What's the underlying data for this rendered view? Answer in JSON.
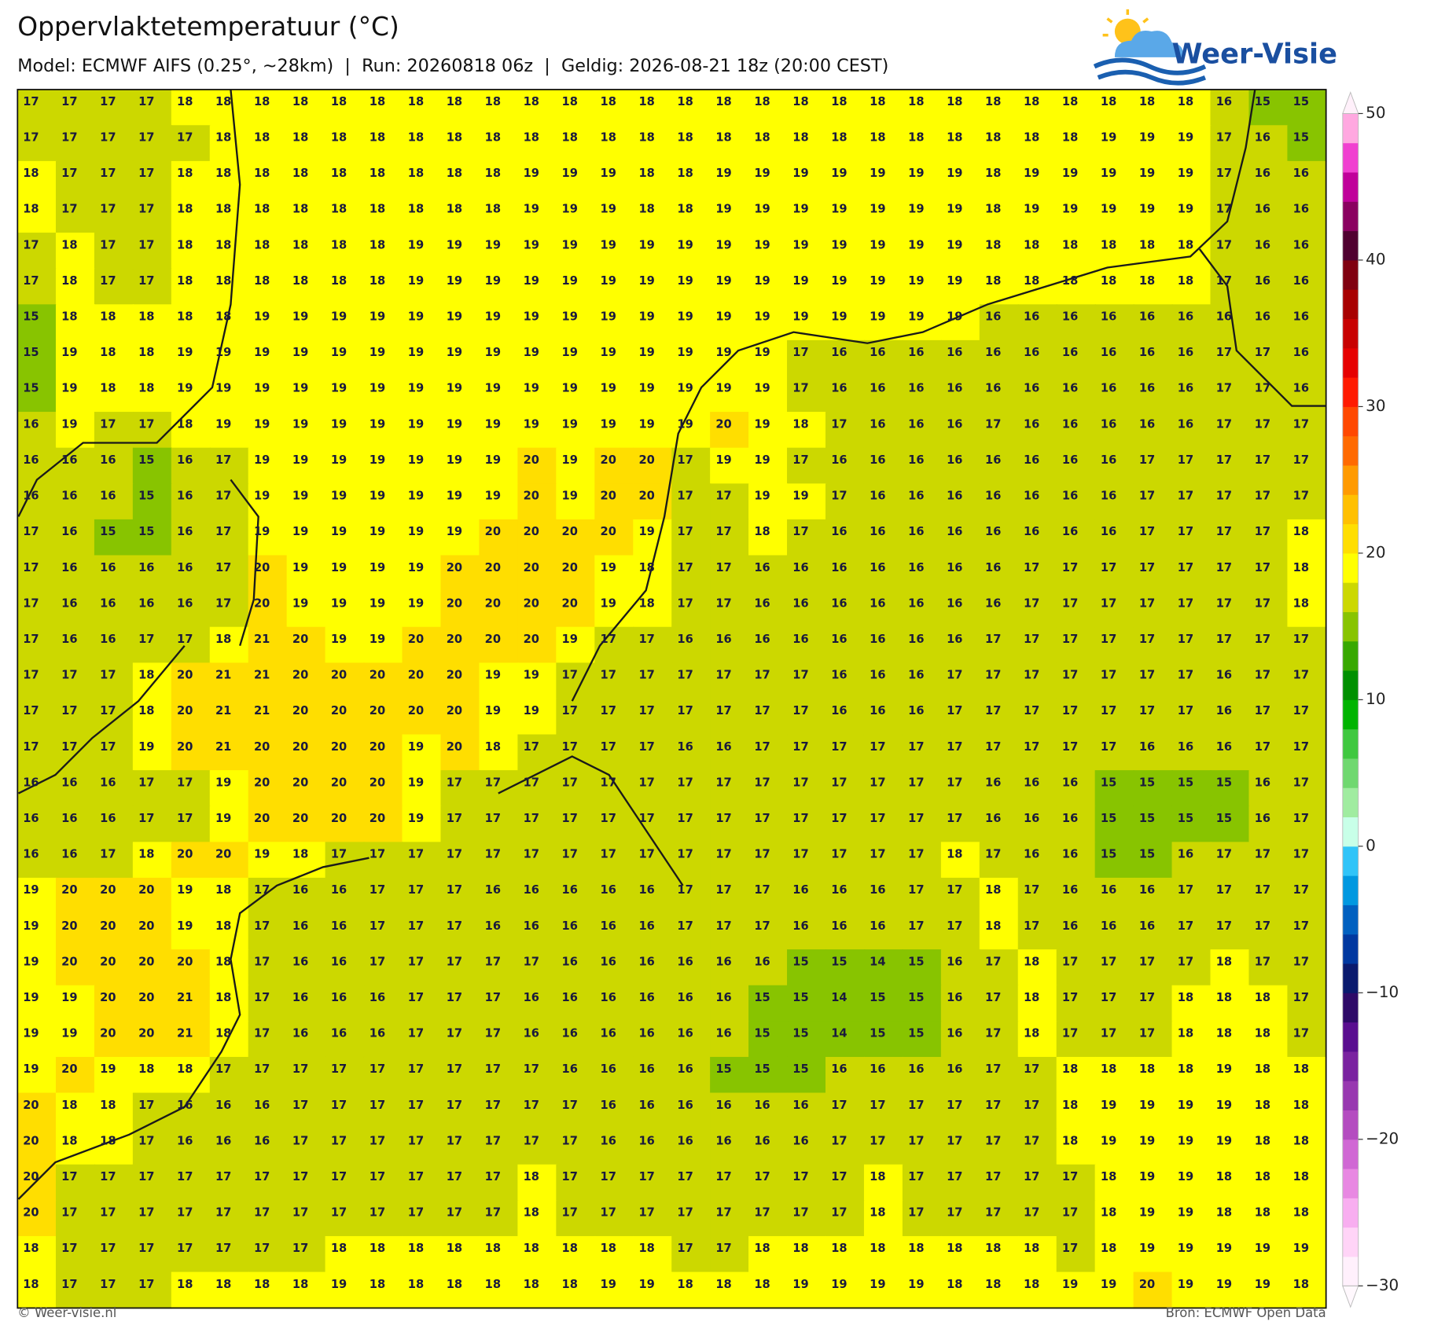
{
  "header": {
    "title": "Oppervlaktetemperatuur (°C)",
    "subtitle": "Model: ECMWF AIFS (0.25°, ~28km)  |  Run: 20260818 06z  |  Geldig: 2026-08-21 18z (20:00 CEST)",
    "logo": "Weer-Visie"
  },
  "grid": {
    "rows": [
      [
        17,
        17,
        17,
        17,
        18,
        18,
        18,
        18,
        18,
        18,
        18,
        18,
        18,
        18,
        18,
        18,
        18,
        18,
        18,
        18,
        18,
        18,
        18,
        18,
        18,
        18,
        18,
        18,
        18,
        18,
        18,
        16,
        15,
        15
      ],
      [
        17,
        17,
        17,
        17,
        17,
        18,
        18,
        18,
        18,
        18,
        18,
        18,
        18,
        18,
        18,
        18,
        18,
        18,
        18,
        18,
        18,
        18,
        18,
        18,
        18,
        18,
        18,
        18,
        19,
        19,
        19,
        17,
        16,
        15
      ],
      [
        18,
        17,
        17,
        17,
        18,
        18,
        18,
        18,
        18,
        18,
        18,
        18,
        18,
        19,
        19,
        19,
        18,
        18,
        19,
        19,
        19,
        19,
        19,
        19,
        19,
        18,
        19,
        19,
        19,
        19,
        19,
        17,
        16,
        16
      ],
      [
        18,
        17,
        17,
        17,
        18,
        18,
        18,
        18,
        18,
        18,
        18,
        18,
        18,
        19,
        19,
        19,
        18,
        18,
        19,
        19,
        19,
        19,
        19,
        19,
        19,
        18,
        19,
        19,
        19,
        19,
        19,
        17,
        16,
        16
      ],
      [
        17,
        18,
        17,
        17,
        18,
        18,
        18,
        18,
        18,
        18,
        19,
        19,
        19,
        19,
        19,
        19,
        19,
        19,
        19,
        19,
        19,
        19,
        19,
        19,
        19,
        18,
        18,
        18,
        18,
        18,
        18,
        17,
        16,
        16
      ],
      [
        17,
        18,
        17,
        17,
        18,
        18,
        18,
        18,
        18,
        18,
        19,
        19,
        19,
        19,
        19,
        19,
        19,
        19,
        19,
        19,
        19,
        19,
        19,
        19,
        19,
        18,
        18,
        18,
        18,
        18,
        18,
        17,
        16,
        16
      ],
      [
        15,
        18,
        18,
        18,
        18,
        18,
        19,
        19,
        19,
        19,
        19,
        19,
        19,
        19,
        19,
        19,
        19,
        19,
        19,
        19,
        19,
        19,
        19,
        19,
        19,
        16,
        16,
        16,
        16,
        16,
        16,
        16,
        16,
        16
      ],
      [
        15,
        19,
        18,
        18,
        19,
        19,
        19,
        19,
        19,
        19,
        19,
        19,
        19,
        19,
        19,
        19,
        19,
        19,
        19,
        19,
        17,
        16,
        16,
        16,
        16,
        16,
        16,
        16,
        16,
        16,
        16,
        17,
        17,
        16
      ],
      [
        15,
        19,
        18,
        18,
        19,
        19,
        19,
        19,
        19,
        19,
        19,
        19,
        19,
        19,
        19,
        19,
        19,
        19,
        19,
        19,
        17,
        16,
        16,
        16,
        16,
        16,
        16,
        16,
        16,
        16,
        16,
        17,
        17,
        16
      ],
      [
        16,
        19,
        17,
        17,
        18,
        19,
        19,
        19,
        19,
        19,
        19,
        19,
        19,
        19,
        19,
        19,
        19,
        19,
        20,
        19,
        18,
        17,
        16,
        16,
        16,
        17,
        16,
        16,
        16,
        16,
        16,
        17,
        17,
        17
      ],
      [
        16,
        16,
        16,
        15,
        16,
        17,
        19,
        19,
        19,
        19,
        19,
        19,
        19,
        20,
        19,
        20,
        20,
        17,
        19,
        19,
        17,
        16,
        16,
        16,
        16,
        16,
        16,
        16,
        16,
        17,
        17,
        17,
        17,
        17
      ],
      [
        16,
        16,
        16,
        15,
        16,
        17,
        19,
        19,
        19,
        19,
        19,
        19,
        19,
        20,
        19,
        20,
        20,
        17,
        17,
        19,
        19,
        17,
        16,
        16,
        16,
        16,
        16,
        16,
        16,
        17,
        17,
        17,
        17,
        17
      ],
      [
        17,
        16,
        15,
        15,
        16,
        17,
        19,
        19,
        19,
        19,
        19,
        19,
        20,
        20,
        20,
        20,
        19,
        17,
        17,
        18,
        17,
        16,
        16,
        16,
        16,
        16,
        16,
        16,
        16,
        17,
        17,
        17,
        17,
        18
      ],
      [
        17,
        16,
        16,
        16,
        16,
        17,
        20,
        19,
        19,
        19,
        19,
        20,
        20,
        20,
        20,
        19,
        18,
        17,
        17,
        16,
        16,
        16,
        16,
        16,
        16,
        16,
        17,
        17,
        17,
        17,
        17,
        17,
        17,
        18
      ],
      [
        17,
        16,
        16,
        16,
        16,
        17,
        20,
        19,
        19,
        19,
        19,
        20,
        20,
        20,
        20,
        19,
        18,
        17,
        17,
        16,
        16,
        16,
        16,
        16,
        16,
        16,
        17,
        17,
        17,
        17,
        17,
        17,
        17,
        18
      ],
      [
        17,
        16,
        16,
        17,
        17,
        18,
        21,
        20,
        19,
        19,
        20,
        20,
        20,
        20,
        19,
        17,
        17,
        16,
        16,
        16,
        16,
        16,
        16,
        16,
        16,
        17,
        17,
        17,
        17,
        17,
        17,
        17,
        17,
        17
      ],
      [
        17,
        17,
        17,
        18,
        20,
        21,
        21,
        20,
        20,
        20,
        20,
        20,
        19,
        19,
        17,
        17,
        17,
        17,
        17,
        17,
        17,
        16,
        16,
        16,
        17,
        17,
        17,
        17,
        17,
        17,
        17,
        16,
        17,
        17
      ],
      [
        17,
        17,
        17,
        18,
        20,
        21,
        21,
        20,
        20,
        20,
        20,
        20,
        19,
        19,
        17,
        17,
        17,
        17,
        17,
        17,
        17,
        16,
        16,
        16,
        17,
        17,
        17,
        17,
        17,
        17,
        17,
        16,
        17,
        17
      ],
      [
        17,
        17,
        17,
        19,
        20,
        21,
        20,
        20,
        20,
        20,
        19,
        20,
        18,
        17,
        17,
        17,
        17,
        16,
        16,
        17,
        17,
        17,
        17,
        17,
        17,
        17,
        17,
        17,
        17,
        16,
        16,
        16,
        17,
        17
      ],
      [
        16,
        16,
        16,
        17,
        17,
        19,
        20,
        20,
        20,
        20,
        19,
        17,
        17,
        17,
        17,
        17,
        17,
        17,
        17,
        17,
        17,
        17,
        17,
        17,
        17,
        16,
        16,
        16,
        15,
        15,
        15,
        15,
        16,
        17
      ],
      [
        16,
        16,
        16,
        17,
        17,
        19,
        20,
        20,
        20,
        20,
        19,
        17,
        17,
        17,
        17,
        17,
        17,
        17,
        17,
        17,
        17,
        17,
        17,
        17,
        17,
        16,
        16,
        16,
        15,
        15,
        15,
        15,
        16,
        17
      ],
      [
        16,
        16,
        17,
        18,
        20,
        20,
        19,
        18,
        17,
        17,
        17,
        17,
        17,
        17,
        17,
        17,
        17,
        17,
        17,
        17,
        17,
        17,
        17,
        17,
        18,
        17,
        16,
        16,
        15,
        15,
        16,
        17,
        17,
        17
      ],
      [
        19,
        20,
        20,
        20,
        19,
        18,
        17,
        16,
        16,
        17,
        17,
        17,
        16,
        16,
        16,
        16,
        16,
        17,
        17,
        17,
        16,
        16,
        16,
        17,
        17,
        18,
        17,
        16,
        16,
        16,
        17,
        17,
        17,
        17
      ],
      [
        19,
        20,
        20,
        20,
        19,
        18,
        17,
        16,
        16,
        17,
        17,
        17,
        16,
        16,
        16,
        16,
        16,
        17,
        17,
        17,
        16,
        16,
        16,
        17,
        17,
        18,
        17,
        16,
        16,
        16,
        17,
        17,
        17,
        17
      ],
      [
        19,
        20,
        20,
        20,
        20,
        18,
        17,
        16,
        16,
        17,
        17,
        17,
        17,
        17,
        16,
        16,
        16,
        16,
        16,
        16,
        15,
        15,
        14,
        15,
        16,
        17,
        18,
        17,
        17,
        17,
        17,
        18,
        17,
        17
      ],
      [
        19,
        19,
        20,
        20,
        21,
        18,
        17,
        16,
        16,
        16,
        17,
        17,
        17,
        16,
        16,
        16,
        16,
        16,
        16,
        15,
        15,
        14,
        15,
        15,
        16,
        17,
        18,
        17,
        17,
        17,
        18,
        18,
        18,
        17
      ],
      [
        19,
        19,
        20,
        20,
        21,
        18,
        17,
        16,
        16,
        16,
        17,
        17,
        17,
        16,
        16,
        16,
        16,
        16,
        16,
        15,
        15,
        14,
        15,
        15,
        16,
        17,
        18,
        17,
        17,
        17,
        18,
        18,
        18,
        17
      ],
      [
        19,
        20,
        19,
        18,
        18,
        17,
        17,
        17,
        17,
        17,
        17,
        17,
        17,
        17,
        16,
        16,
        16,
        16,
        15,
        15,
        15,
        16,
        16,
        16,
        16,
        17,
        17,
        18,
        18,
        18,
        18,
        19,
        18,
        18
      ],
      [
        20,
        18,
        18,
        17,
        16,
        16,
        16,
        17,
        17,
        17,
        17,
        17,
        17,
        17,
        17,
        16,
        16,
        16,
        16,
        16,
        16,
        17,
        17,
        17,
        17,
        17,
        17,
        18,
        19,
        19,
        19,
        19,
        18,
        18
      ],
      [
        20,
        18,
        18,
        17,
        16,
        16,
        16,
        17,
        17,
        17,
        17,
        17,
        17,
        17,
        17,
        16,
        16,
        16,
        16,
        16,
        16,
        17,
        17,
        17,
        17,
        17,
        17,
        18,
        19,
        19,
        19,
        19,
        18,
        18
      ],
      [
        20,
        17,
        17,
        17,
        17,
        17,
        17,
        17,
        17,
        17,
        17,
        17,
        17,
        18,
        17,
        17,
        17,
        17,
        17,
        17,
        17,
        17,
        18,
        17,
        17,
        17,
        17,
        17,
        18,
        19,
        19,
        18,
        18,
        18
      ],
      [
        20,
        17,
        17,
        17,
        17,
        17,
        17,
        17,
        17,
        17,
        17,
        17,
        17,
        18,
        17,
        17,
        17,
        17,
        17,
        17,
        17,
        17,
        18,
        17,
        17,
        17,
        17,
        17,
        18,
        19,
        19,
        18,
        18,
        18
      ],
      [
        18,
        17,
        17,
        17,
        17,
        17,
        17,
        17,
        18,
        18,
        18,
        18,
        18,
        18,
        18,
        18,
        18,
        17,
        17,
        18,
        18,
        18,
        18,
        18,
        18,
        18,
        18,
        17,
        18,
        19,
        19,
        19,
        19,
        19
      ],
      [
        18,
        17,
        17,
        17,
        18,
        18,
        18,
        18,
        19,
        18,
        18,
        18,
        18,
        18,
        18,
        19,
        19,
        18,
        18,
        18,
        19,
        19,
        19,
        19,
        18,
        18,
        18,
        19,
        19,
        20,
        19,
        19,
        19,
        18
      ]
    ]
  },
  "colorbar": {
    "lim": [
      -30,
      50
    ],
    "ticks": [
      50,
      40,
      30,
      20,
      10,
      0,
      {
        "value": -10,
        "label": "−10"
      },
      {
        "value": -20,
        "label": "−20"
      },
      {
        "value": -30,
        "label": "−30"
      }
    ],
    "colors": [
      "#fff0fc",
      "#ffd4f7",
      "#f8aef0",
      "#e888e2",
      "#d068d4",
      "#b44cc0",
      "#9838b0",
      "#7a22a0",
      "#5a0e90",
      "#2e0a68",
      "#0a1a6e",
      "#0038a0",
      "#0060c0",
      "#0098e0",
      "#30c4f8",
      "#c8ffe8",
      "#a0eca0",
      "#70d870",
      "#40c840",
      "#00b400",
      "#009000",
      "#38a800",
      "#88c400",
      "#ccd800",
      "#ffff00",
      "#ffde00",
      "#ffc000",
      "#ff9a00",
      "#ff6a00",
      "#ff4800",
      "#ff1a00",
      "#e60000",
      "#c80000",
      "#a80000",
      "#800010",
      "#500030",
      "#8a0060",
      "#c0009a",
      "#f040d0",
      "#ffa8e0"
    ],
    "over_color": "#fff0fa",
    "under_color": "#fff8fd"
  },
  "footer": {
    "left": "© Weer-visie.nl",
    "right": "Bron: ECMWF Open Data"
  }
}
